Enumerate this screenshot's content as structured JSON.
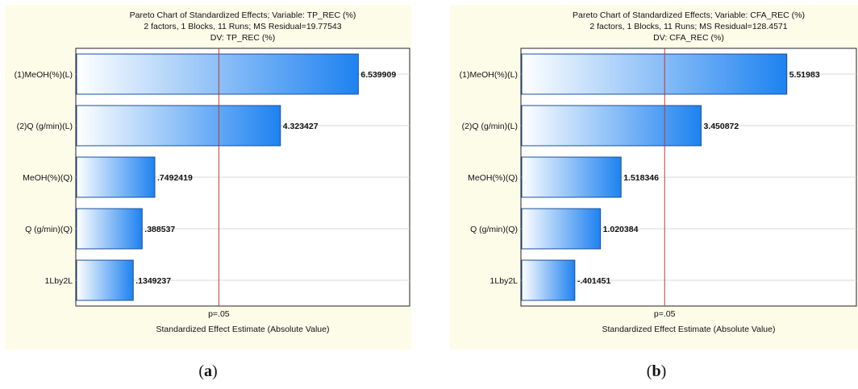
{
  "chart_data": [
    {
      "type": "bar",
      "orientation": "horizontal",
      "title": "Pareto Chart of Standardized Effects; Variable: TP_REC (%)",
      "subtitle": "2 factors, 1 Blocks, 11 Runs; MS Residual=19.77543",
      "subtitle2": "DV: TP_REC (%)",
      "xlabel": "Standardized Effect Estimate (Absolute Value)",
      "categories": [
        "(1)MeOH(%)(L)",
        "(2)Q (g/min)(L)",
        "MeOH(%)(Q)",
        "Q (g/min)(Q)",
        "1Lby2L"
      ],
      "values": [
        6.539909,
        4.323427,
        0.7492419,
        0.388537,
        0.1349237
      ],
      "value_labels": [
        "6.539909",
        "4.323427",
        ".7492419",
        ".388537",
        ".1349237"
      ],
      "xlim": [
        -1.5,
        8.0
      ],
      "reference_line": {
        "value": 2.57,
        "label": "p=.05"
      },
      "grid": true,
      "legend": "none"
    },
    {
      "type": "bar",
      "orientation": "horizontal",
      "title": "Pareto Chart of Standardized Effects; Variable: CFA_REC (%)",
      "subtitle": "2 factors, 1 Blocks, 11 Runs; MS Residual=128.4571",
      "subtitle2": "DV: CFA_REC (%)",
      "xlabel": "Standardized Effect Estimate (Absolute Value)",
      "categories": [
        "(1)MeOH(%)(L)",
        "(2)Q (g/min)(L)",
        "MeOH(%)(Q)",
        "Q (g/min)(Q)",
        "1Lby2L"
      ],
      "values": [
        5.51983,
        3.450872,
        1.518346,
        1.020384,
        0.401451
      ],
      "value_labels": [
        "5.51983",
        "3.450872",
        "1.518346",
        "1.020384",
        "-.401451"
      ],
      "xlim": [
        -0.9,
        7.2
      ],
      "reference_line": {
        "value": 2.57,
        "label": "p=.05"
      },
      "grid": true,
      "legend": "none"
    }
  ],
  "captions": {
    "a_open": "(",
    "a_letter": "a",
    "a_close": ")",
    "b_open": "(",
    "b_letter": "b",
    "b_close": ")"
  },
  "colors": {
    "bar_start": "#ffffff",
    "bar_end": "#1e82f0",
    "bar_stroke": "#1a4f9c",
    "reference_line": "#c0392b",
    "grid": "#d8d8d8",
    "panel_bg": "#fdfce9"
  }
}
